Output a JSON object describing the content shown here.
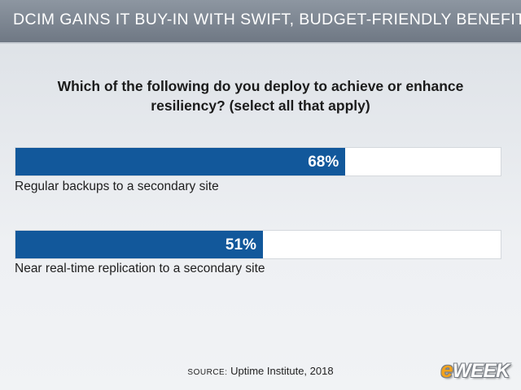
{
  "banner": {
    "title": "DCIM GAINS IT BUY-IN WITH SWIFT, BUDGET-FRIENDLY BENEFITS"
  },
  "chart_data": {
    "type": "bar",
    "orientation": "horizontal",
    "title": "Which of the following do you deploy to achieve or enhance resiliency? (select all that apply)",
    "categories": [
      "Regular backups to a secondary site",
      "Near real-time replication to a secondary site"
    ],
    "values": [
      68,
      51
    ],
    "value_labels": [
      "68%",
      "51%"
    ],
    "xlim": [
      0,
      100
    ],
    "grid": false,
    "bar_color": "#12589b",
    "track_color": "#ffffff"
  },
  "source": {
    "key": "SOURCE:",
    "text": "Uptime Institute, 2018"
  },
  "logo": {
    "e": "e",
    "rest": "WEEK"
  }
}
